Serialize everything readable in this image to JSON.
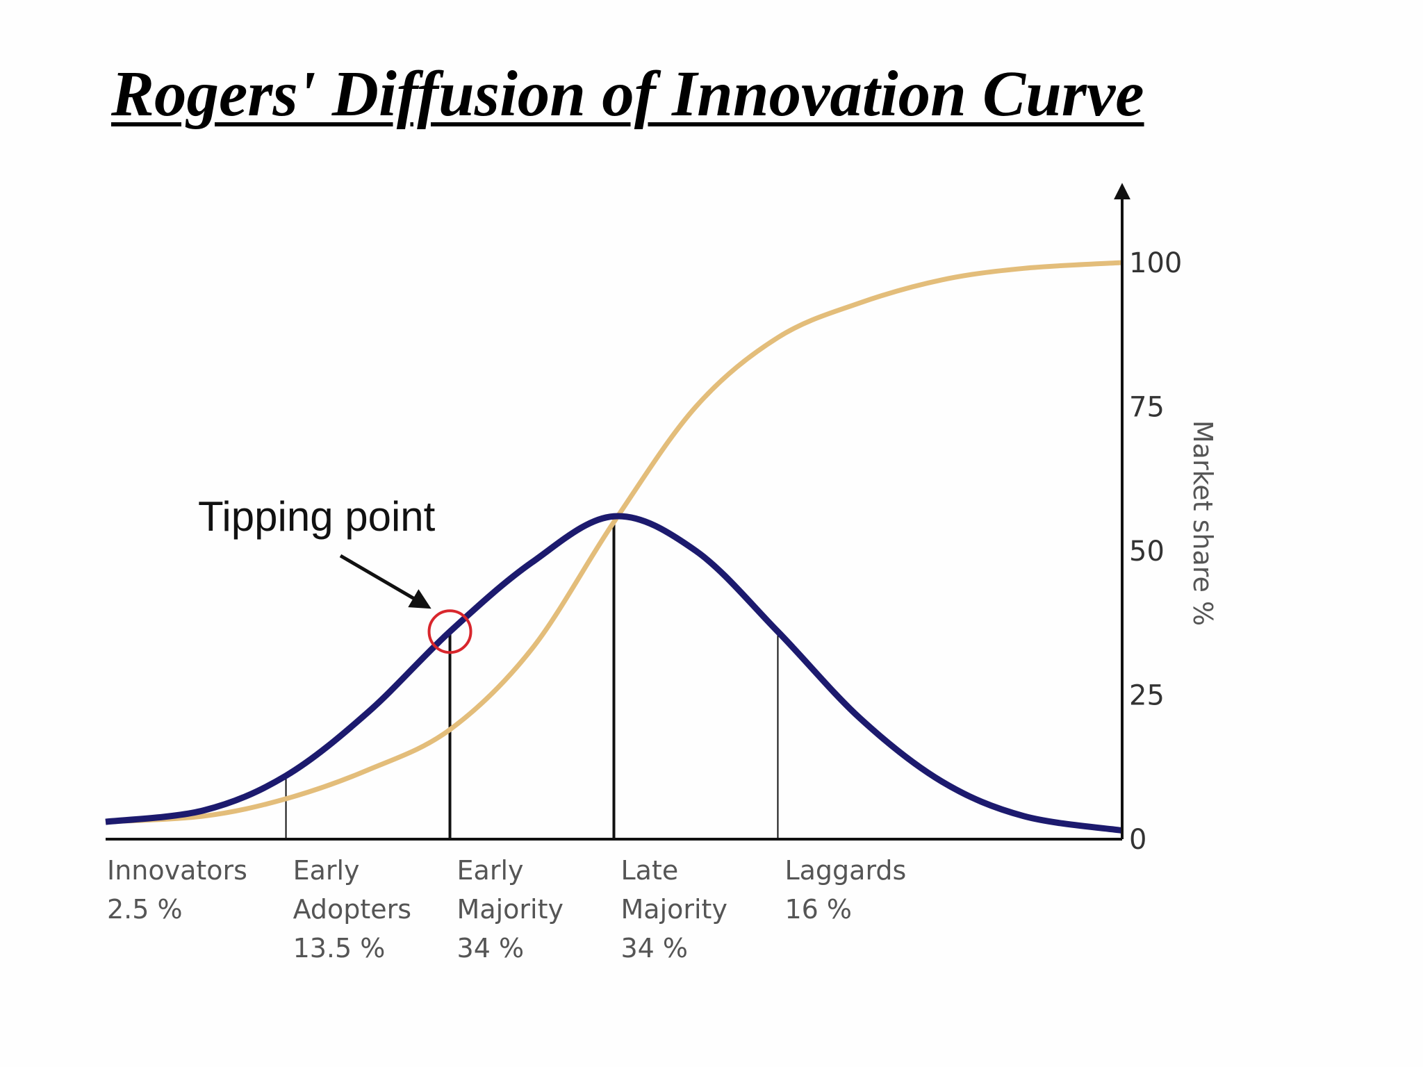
{
  "title": "Rogers' Diffusion of Innovation Curve",
  "colors": {
    "bell_curve": "#1c1a6e",
    "s_curve": "#e3bd7a",
    "tipping_circle": "#d8262c",
    "axis": "#111111"
  },
  "chart_data": {
    "type": "line",
    "title": "Rogers' Diffusion of Innovation Curve",
    "ylabel": "Market share %",
    "ylim": [
      0,
      100
    ],
    "y_ticks": [
      "0",
      "25",
      "50",
      "75",
      "100"
    ],
    "x_axis_unit": "standard deviations from mean adoption time",
    "xlim": [
      -3.1,
      3.1
    ],
    "grid": false,
    "series": [
      {
        "key": "adoption",
        "x": [
          -3.1,
          -2.5,
          -2,
          -1.5,
          -1,
          -0.5,
          0,
          0.5,
          1,
          1.5,
          2,
          2.5,
          3.1
        ],
        "y": [
          3,
          5,
          11,
          22,
          36,
          48,
          56,
          50,
          36,
          21,
          10,
          4,
          1.5
        ]
      },
      {
        "key": "cumulative market share",
        "x": [
          -3.1,
          -2.5,
          -2,
          -1.5,
          -1,
          -0.5,
          0,
          0.5,
          1,
          1.5,
          2,
          2.5,
          3.1
        ],
        "y": [
          3,
          4,
          7,
          12,
          19,
          33,
          55,
          75,
          87,
          93,
          97,
          99,
          100
        ]
      }
    ],
    "segment_boundaries_x": [
      -2,
      -1,
      0,
      1
    ],
    "categories": [
      {
        "lines": [
          "Innovators",
          "2.5 %"
        ],
        "x_start": -3.1
      },
      {
        "lines": [
          "Early",
          "Adopters",
          "13.5 %"
        ],
        "x_start": -2
      },
      {
        "lines": [
          "Early",
          "Majority",
          "34 %"
        ],
        "x_start": -1
      },
      {
        "lines": [
          "Late",
          "Majority",
          "34 %"
        ],
        "x_start": 0
      },
      {
        "lines": [
          "Laggards",
          "16 %"
        ],
        "x_start": 1
      }
    ],
    "annotations": [
      {
        "text": "Tipping point",
        "x": -1,
        "y": 36
      }
    ]
  }
}
